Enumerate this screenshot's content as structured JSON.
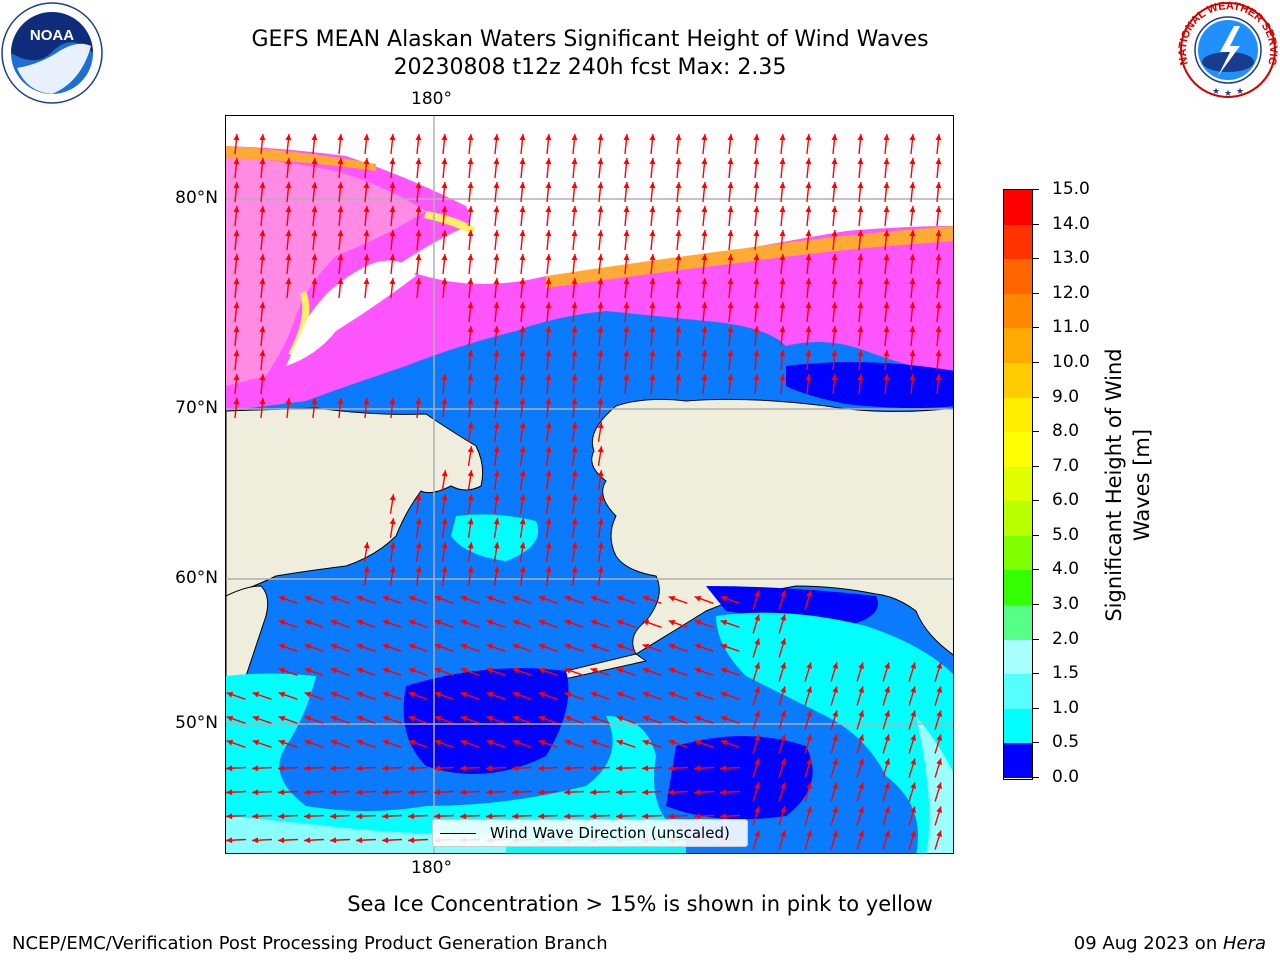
{
  "title": {
    "line1": "GEFS MEAN Alaskan Waters Significant Height of Wind Waves",
    "line2": "20230808 t12z 240h fcst   Max: 2.35"
  },
  "axes": {
    "top_lon_label": "180°",
    "bottom_lon_label": "180°",
    "lat_labels": [
      "80°N",
      "70°N",
      "60°N",
      "50°N"
    ]
  },
  "colorbar": {
    "label_line1": "Significant Height of Wind",
    "label_line2": "Waves [m]",
    "ticks": [
      "15.0",
      "14.0",
      "13.0",
      "12.0",
      "11.0",
      "10.0",
      "9.0",
      "8.0",
      "7.0",
      "6.0",
      "5.0",
      "4.0",
      "3.0",
      "2.0",
      "1.5",
      "1.0",
      "0.5",
      "0.0"
    ],
    "colors": [
      "#ff0000",
      "#ff3300",
      "#ff6600",
      "#ff8800",
      "#ffaa00",
      "#ffcc00",
      "#ffee00",
      "#ffff00",
      "#dfff00",
      "#b8ff00",
      "#7fff00",
      "#33ff00",
      "#00dd00",
      "#55ff88",
      "#aaffff",
      "#55ffff",
      "#00ffff",
      "#0088ff",
      "#0000ff"
    ]
  },
  "legend": {
    "label": "Wind Wave Direction (unscaled)"
  },
  "footer": {
    "note": "Sea Ice Concentration > 15% is shown in pink to yellow",
    "left": "NCEP/EMC/Verification Post Processing Product Generation Branch",
    "right_date": "09 Aug 2023 on ",
    "right_host": "Hera"
  },
  "logos": {
    "noaa_text": "NOAA",
    "nws_text": "NATIONAL WEATHER SERVICE"
  },
  "map_colors": {
    "land": "#efeedd",
    "ocean_low": "#0000ff",
    "ocean_mid": "#0a7bff",
    "ocean_high": "#00ffff",
    "ocean_pale": "#99ffff",
    "ice_pink": "#ff55ff",
    "ice_light": "#ff99dd",
    "ice_orange": "#ffaa33",
    "ice_yellow": "#ffee66",
    "grid": "#b0b0b0",
    "arrow": "#ff0000"
  }
}
